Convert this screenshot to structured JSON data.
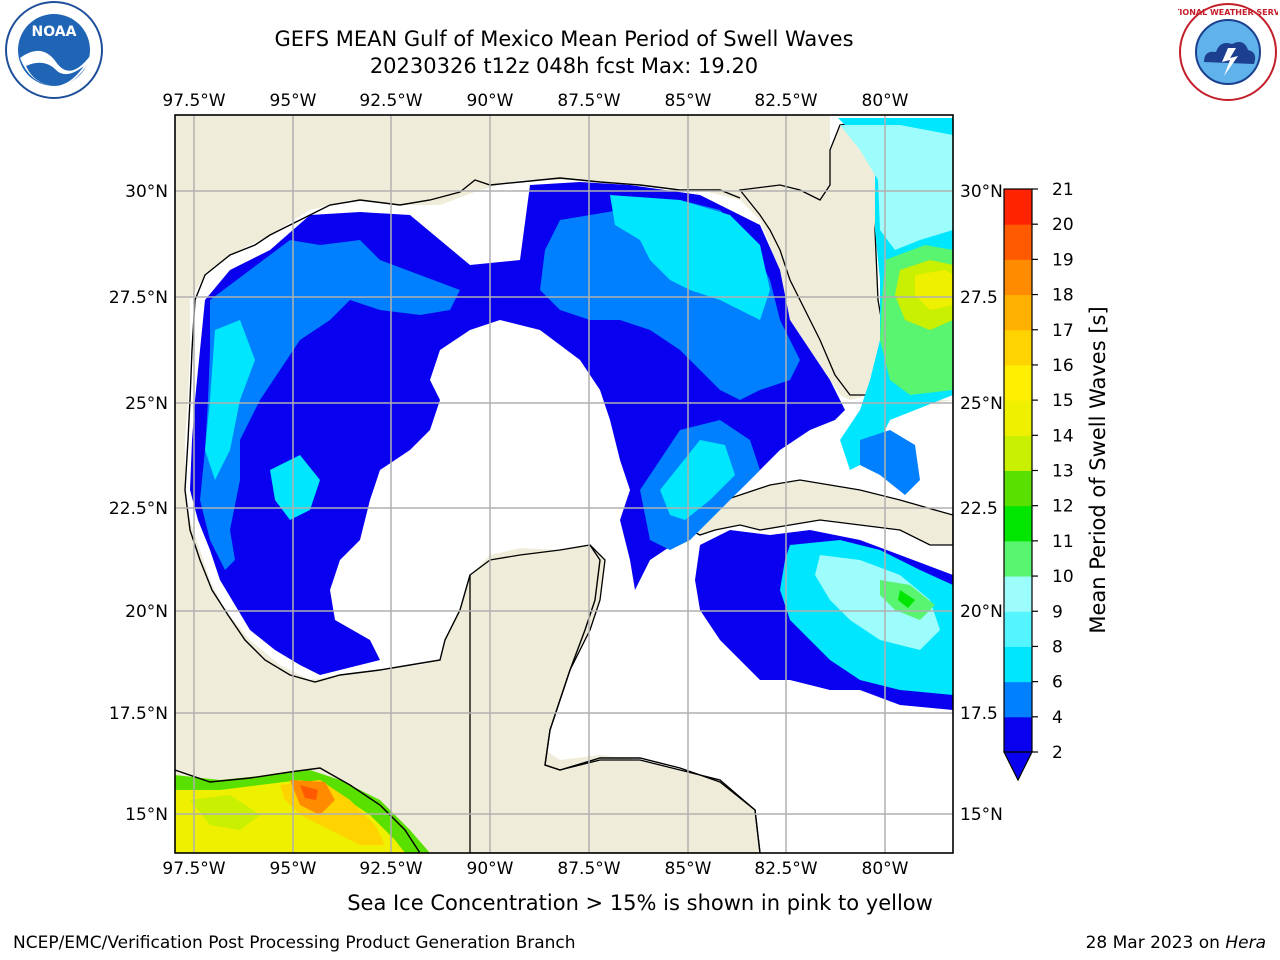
{
  "title_line1": "GEFS MEAN Gulf of Mexico Mean Period of Swell Waves",
  "title_line2": "20230326 t12z 048h fcst   Max: 19.20",
  "logos": {
    "left": {
      "text": "NOAA",
      "icon": "noaa-logo-icon"
    },
    "right": {
      "text": "NATIONAL WEATHER SERVICE",
      "icon": "nws-logo-icon"
    }
  },
  "map": {
    "lon_labels": [
      "97.5°W",
      "95°W",
      "92.5°W",
      "90°W",
      "87.5°W",
      "85°W",
      "82.5°W",
      "80°W"
    ],
    "lat_labels_left": [
      "30°N",
      "27.5°N",
      "25°N",
      "22.5°N",
      "20°N",
      "17.5°N",
      "15°N"
    ],
    "lat_labels_right": [
      "30°N",
      "27.5",
      "25°N",
      "22.5",
      "20°N",
      "17.5",
      "15°N"
    ],
    "colors": {
      "land": "#efedda",
      "ocean_white": "#ffffff",
      "grid": "#b0b0b0"
    }
  },
  "colorbar": {
    "label": "Mean Period of Swell Waves [s]",
    "ticks": [
      "2",
      "4",
      "6",
      "8",
      "9",
      "10",
      "11",
      "12",
      "13",
      "14",
      "15",
      "16",
      "17",
      "18",
      "19",
      "20",
      "21"
    ],
    "colors": [
      "#0a00f0",
      "#0080ff",
      "#00e6ff",
      "#55f5ff",
      "#9dfcfc",
      "#59f470",
      "#00e600",
      "#5ae000",
      "#c8f000",
      "#eef000",
      "#ffef00",
      "#ffd300",
      "#ffb000",
      "#ff8c00",
      "#ff5a00",
      "#ff2300"
    ],
    "extend_color": "#0a00f0"
  },
  "note": "Sea Ice Concentration > 15% is shown in pink to yellow",
  "footer_left": "NCEP/EMC/Verification Post Processing Product Generation Branch",
  "footer_right_date": "28 Mar 2023 on ",
  "footer_right_host": "Hera"
}
